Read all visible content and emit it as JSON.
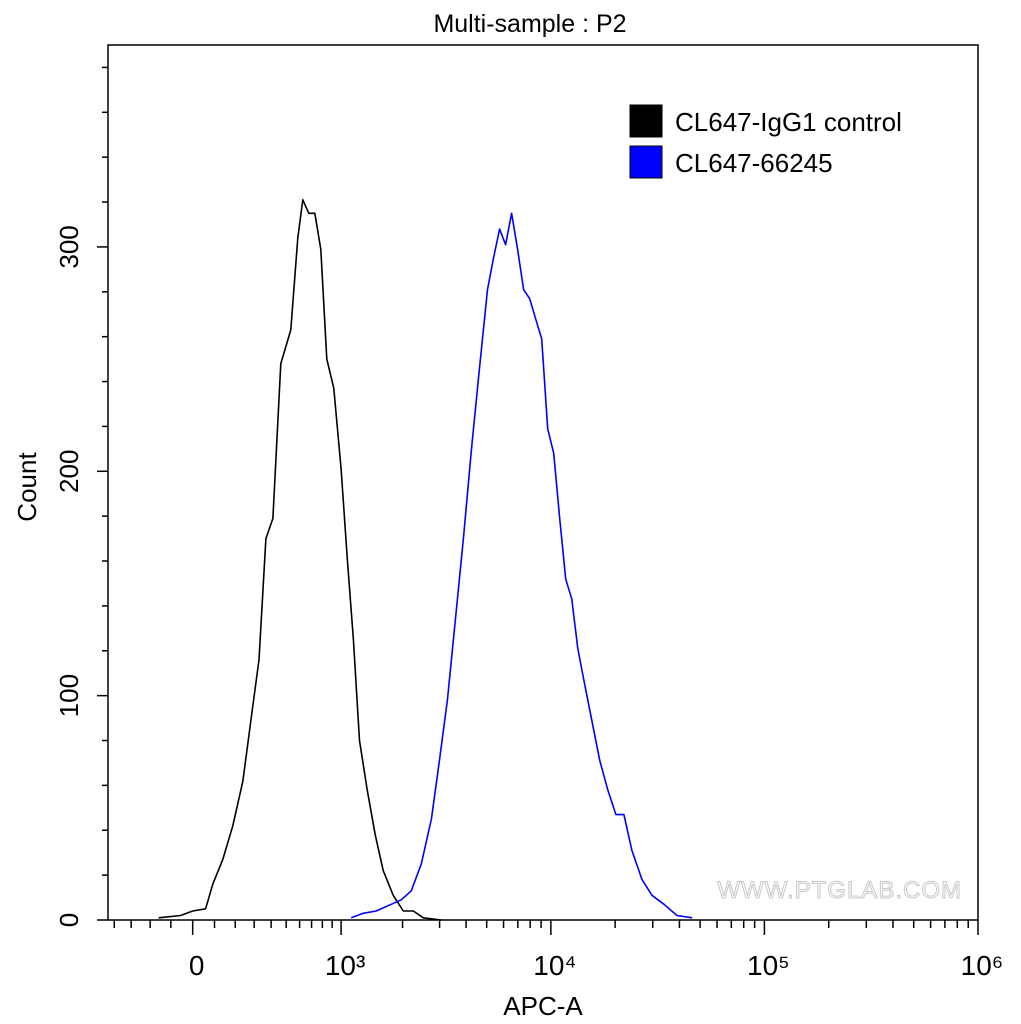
{
  "chart_data": {
    "type": "line",
    "title": "Multi-sample : P2",
    "x_label": "APC-A",
    "y_label": "Count",
    "xscale": "biexponential",
    "xlim": [
      -440,
      1000000
    ],
    "ylim": [
      0,
      390
    ],
    "xticks": [
      0,
      {
        "value": 1000,
        "label": "10³"
      },
      {
        "value": 10000,
        "label": "10⁴"
      },
      {
        "value": 100000,
        "label": "10⁵"
      },
      {
        "value": 1000000,
        "label": "10⁶"
      }
    ],
    "xminor_ticks": [
      -400,
      -300,
      -200,
      -100,
      100,
      200,
      300,
      400,
      500,
      600,
      700,
      800,
      900,
      2000,
      3000,
      4000,
      5000,
      6000,
      7000,
      8000,
      9000,
      20000,
      30000,
      40000,
      50000,
      60000,
      70000,
      80000,
      90000,
      200000,
      300000,
      400000,
      500000,
      600000,
      700000,
      800000,
      900000
    ],
    "yticks": [
      0,
      100,
      200,
      300
    ],
    "yminor_ticks": [
      20,
      40,
      60,
      80,
      120,
      140,
      160,
      180,
      220,
      240,
      260,
      280,
      320,
      340,
      360,
      380
    ],
    "legend": "top-right",
    "watermark": "WWW.PTGLAB.COM",
    "series": [
      {
        "name": "CL647-IgG1 control",
        "color": "#000000",
        "x": [
          -158,
          -55,
          0,
          59,
          92,
          139,
          188,
          239,
          282,
          327,
          368,
          411,
          463,
          533,
          586,
          626,
          676,
          729,
          785,
          844,
          918,
          1000,
          1075,
          1153,
          1237,
          1349,
          1476,
          1615,
          1805,
          2017,
          2251,
          2512,
          3059
        ],
        "values": [
          1,
          2,
          4,
          5,
          16,
          27,
          42,
          62,
          89,
          116,
          170,
          179,
          248,
          263,
          304,
          321,
          315,
          315,
          299,
          250,
          237,
          201,
          161,
          125,
          80,
          58,
          38,
          22,
          11,
          4,
          4,
          1,
          0
        ]
      },
      {
        "name": "CL647-66245",
        "color": "#0000ff",
        "x": [
          1124,
          1289,
          1493,
          1765,
          1972,
          2202,
          2458,
          2743,
          2993,
          3266,
          3564,
          3887,
          4240,
          4627,
          5045,
          5384,
          5747,
          6133,
          6543,
          6983,
          7452,
          7952,
          8484,
          9055,
          9662,
          10310,
          11001,
          11741,
          12529,
          13367,
          14263,
          15552,
          16958,
          18490,
          20162,
          21985,
          23971,
          26708,
          29756,
          33878,
          38985,
          45847
        ],
        "values": [
          1,
          3,
          4,
          7,
          9,
          13,
          25,
          45,
          71,
          98,
          134,
          170,
          210,
          246,
          281,
          295,
          308,
          301,
          315,
          299,
          281,
          277,
          268,
          259,
          219,
          208,
          179,
          152,
          143,
          121,
          107,
          89,
          71,
          58,
          47,
          47,
          31,
          18,
          11,
          7,
          2,
          1
        ]
      }
    ]
  }
}
